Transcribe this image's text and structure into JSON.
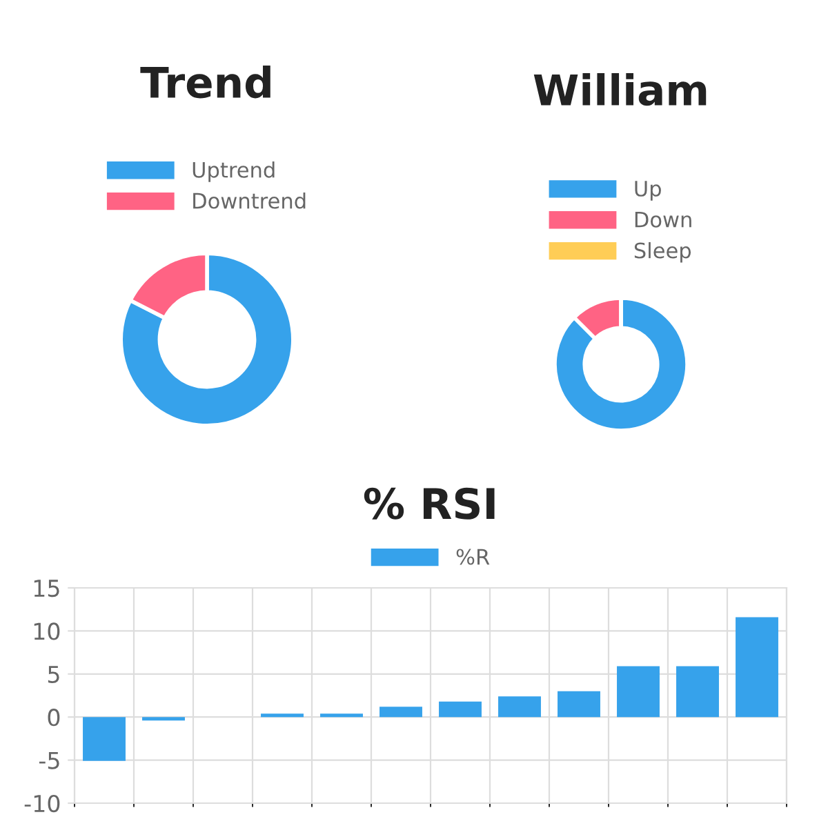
{
  "chart_data": [
    {
      "type": "donut",
      "title": "Trend",
      "categories": [
        "Uptrend",
        "Downtrend"
      ],
      "values": [
        82.5,
        17.5
      ],
      "colors": [
        "#36a2eb",
        "#ff6384"
      ],
      "legend": "top"
    },
    {
      "type": "donut",
      "title": "William",
      "categories": [
        "Up",
        "Down",
        "Sleep"
      ],
      "values": [
        87.5,
        12.5,
        0
      ],
      "colors": [
        "#36a2eb",
        "#ff6384",
        "#ffcd56"
      ],
      "legend": "top"
    },
    {
      "type": "bar",
      "title": "% RSI",
      "categories": [
        null,
        null,
        null,
        null,
        null,
        null,
        null,
        null,
        null,
        null,
        null,
        null
      ],
      "series": [
        {
          "name": "%R",
          "color": "#36a2eb",
          "values": [
            -5.1,
            -0.4,
            0,
            0.4,
            0.4,
            1.2,
            1.8,
            2.4,
            3.0,
            5.9,
            5.9,
            11.6
          ]
        }
      ],
      "ylim": [
        -10,
        15
      ],
      "yticks": [
        -10,
        -5,
        0,
        5,
        10,
        15
      ],
      "grid": true,
      "legend": "top"
    }
  ]
}
